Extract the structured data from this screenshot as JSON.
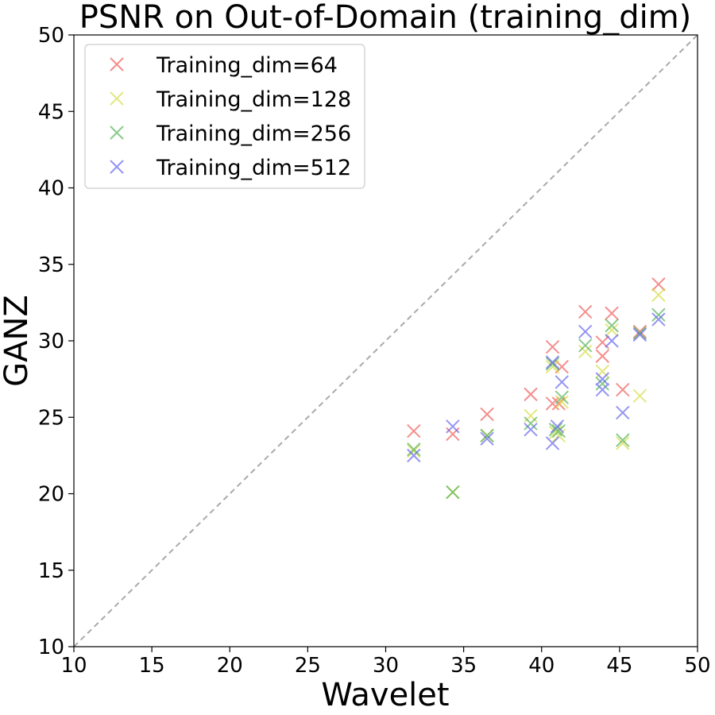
{
  "chart_data": {
    "type": "scatter",
    "title": "PSNR on Out-of-Domain (training_dim)",
    "xlabel": "Wavelet",
    "ylabel": "GANZ",
    "xlim": [
      10,
      50
    ],
    "ylim": [
      10,
      50
    ],
    "xticks": [
      "10",
      "15",
      "20",
      "25",
      "30",
      "35",
      "40",
      "45",
      "50"
    ],
    "yticks": [
      "10",
      "15",
      "20",
      "25",
      "30",
      "35",
      "40",
      "45",
      "50"
    ],
    "marker": "x",
    "reference_line": {
      "style": "dashed",
      "color": "#aaaaaa",
      "from": [
        10,
        10
      ],
      "to": [
        50,
        50
      ]
    },
    "grid": false,
    "legend_position": "top-left",
    "series": [
      {
        "name": "Training_dim=64",
        "color": "#ef5350",
        "points": [
          [
            31.8,
            24.1
          ],
          [
            34.3,
            23.9
          ],
          [
            36.5,
            25.2
          ],
          [
            39.3,
            26.5
          ],
          [
            40.7,
            29.6
          ],
          [
            40.7,
            25.9
          ],
          [
            41.1,
            25.9
          ],
          [
            41.3,
            28.3
          ],
          [
            42.8,
            31.9
          ],
          [
            43.9,
            29.9
          ],
          [
            43.9,
            29.0
          ],
          [
            44.5,
            31.8
          ],
          [
            45.2,
            26.8
          ],
          [
            46.3,
            30.6
          ],
          [
            47.5,
            33.7
          ]
        ]
      },
      {
        "name": "Training_dim=128",
        "color": "#d4dc3c",
        "points": [
          [
            31.8,
            22.8
          ],
          [
            34.3,
            20.1
          ],
          [
            36.5,
            23.8
          ],
          [
            39.3,
            25.1
          ],
          [
            40.7,
            28.3
          ],
          [
            40.9,
            24.0
          ],
          [
            41.1,
            23.8
          ],
          [
            41.3,
            26.0
          ],
          [
            42.8,
            29.3
          ],
          [
            43.9,
            28.0
          ],
          [
            44.5,
            30.7
          ],
          [
            45.2,
            23.3
          ],
          [
            46.3,
            26.4
          ],
          [
            47.5,
            33.0
          ]
        ]
      },
      {
        "name": "Training_dim=256",
        "color": "#4caf50",
        "points": [
          [
            31.8,
            22.9
          ],
          [
            34.3,
            20.1
          ],
          [
            36.5,
            23.8
          ],
          [
            39.3,
            24.6
          ],
          [
            40.7,
            28.5
          ],
          [
            40.9,
            24.2
          ],
          [
            41.1,
            24.1
          ],
          [
            41.3,
            26.3
          ],
          [
            42.8,
            29.7
          ],
          [
            43.9,
            27.2
          ],
          [
            44.5,
            31.0
          ],
          [
            45.2,
            23.5
          ],
          [
            46.3,
            30.5
          ],
          [
            47.5,
            31.7
          ]
        ]
      },
      {
        "name": "Training_dim=512",
        "color": "#5c5cef",
        "points": [
          [
            31.8,
            22.5
          ],
          [
            34.3,
            24.4
          ],
          [
            36.5,
            23.6
          ],
          [
            39.3,
            24.2
          ],
          [
            40.7,
            28.6
          ],
          [
            40.7,
            23.3
          ],
          [
            41.0,
            24.4
          ],
          [
            41.3,
            27.3
          ],
          [
            42.8,
            30.6
          ],
          [
            43.9,
            26.8
          ],
          [
            43.9,
            27.5
          ],
          [
            44.5,
            30.0
          ],
          [
            45.2,
            25.3
          ],
          [
            46.3,
            30.4
          ],
          [
            47.5,
            31.4
          ]
        ]
      }
    ]
  }
}
